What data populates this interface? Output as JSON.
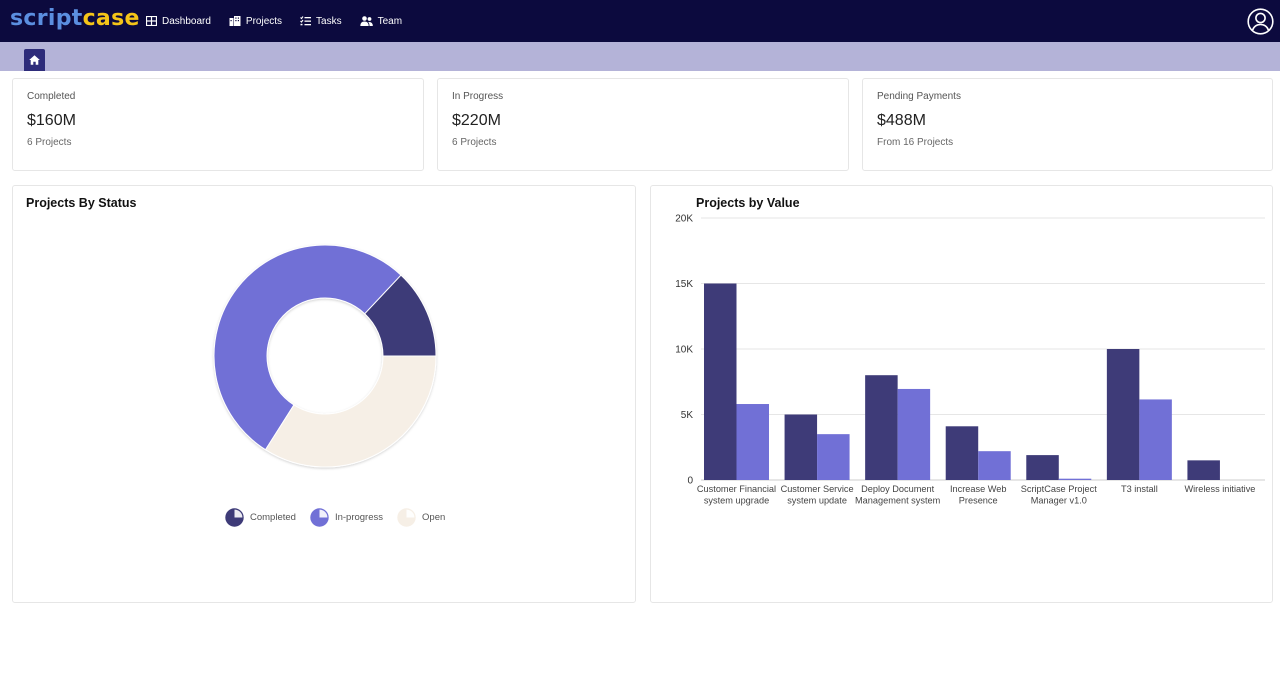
{
  "app": {
    "logo_part1": "script",
    "logo_part2": "case"
  },
  "nav": {
    "items": [
      {
        "label": "Dashboard",
        "icon": "dashboard-grid-icon"
      },
      {
        "label": "Projects",
        "icon": "building-icon"
      },
      {
        "label": "Tasks",
        "icon": "task-list-icon"
      },
      {
        "label": "Team",
        "icon": "users-icon"
      }
    ],
    "user_icon": "user-avatar-icon"
  },
  "breadcrumb": {
    "home_icon": "home-icon"
  },
  "stats": [
    {
      "label": "Completed",
      "value": "$160M",
      "sub": "6 Projects"
    },
    {
      "label": "In Progress",
      "value": "$220M",
      "sub": "6 Projects"
    },
    {
      "label": "Pending Payments",
      "value": "$488M",
      "sub": "From 16 Projects"
    }
  ],
  "panels": {
    "status_title": "Projects By Status",
    "value_title": "Projects by Value"
  },
  "chart_data": [
    {
      "type": "pie",
      "variant": "donut",
      "title": "Projects By Status",
      "labels": [
        "Completed",
        "In-progress",
        "Open"
      ],
      "values": [
        13,
        53,
        34
      ],
      "colors": [
        "#3e3b78",
        "#7170d6",
        "#f6efe6"
      ],
      "legend": "bottom"
    },
    {
      "type": "bar",
      "title": "Projects by Value",
      "categories": [
        "Customer Financial system upgrade",
        "Customer Service system update",
        "Deploy Document Management system",
        "Increase Web Presence",
        "ScriptCase Project Manager v1.0",
        "T3 install",
        "Wireless initiative"
      ],
      "series": [
        {
          "values": [
            15000,
            5000,
            8000,
            4100,
            1900,
            10000,
            1500
          ],
          "color": "#3e3b78"
        },
        {
          "values": [
            5800,
            3500,
            6950,
            2200,
            100,
            6150,
            0
          ],
          "color": "#7170d6"
        }
      ],
      "ylim": [
        0,
        20000
      ],
      "yticks": [
        "0",
        "5K",
        "10K",
        "15K",
        "20K"
      ],
      "grid": true,
      "legend": "none"
    }
  ]
}
